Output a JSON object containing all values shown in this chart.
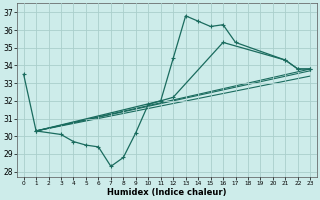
{
  "xlabel": "Humidex (Indice chaleur)",
  "xlim": [
    -0.5,
    23.5
  ],
  "ylim": [
    27.7,
    37.5
  ],
  "yticks": [
    28,
    29,
    30,
    31,
    32,
    33,
    34,
    35,
    36,
    37
  ],
  "xticks": [
    0,
    1,
    2,
    3,
    4,
    5,
    6,
    7,
    8,
    9,
    10,
    11,
    12,
    13,
    14,
    15,
    16,
    17,
    18,
    19,
    20,
    21,
    22,
    23
  ],
  "bg_color": "#cdecea",
  "grid_color": "#aacfcc",
  "line_color": "#1a6b5e",
  "s1_x": [
    0,
    1,
    11,
    12,
    13,
    14,
    15,
    16,
    17,
    21,
    22,
    23
  ],
  "s1_y": [
    33.5,
    30.3,
    32.0,
    34.4,
    36.8,
    36.5,
    36.2,
    36.3,
    35.3,
    34.3,
    33.8,
    33.8
  ],
  "s2_x": [
    1,
    3,
    4,
    5,
    6,
    7,
    8,
    9,
    10,
    12,
    16,
    21,
    22,
    23
  ],
  "s2_y": [
    30.3,
    30.1,
    29.7,
    29.5,
    29.4,
    28.3,
    28.8,
    30.2,
    31.8,
    32.2,
    35.3,
    34.3,
    33.8,
    33.8
  ],
  "trend_lines": [
    {
      "x": [
        1,
        23
      ],
      "y": [
        30.3,
        33.8
      ]
    },
    {
      "x": [
        1,
        23
      ],
      "y": [
        30.3,
        33.7
      ]
    },
    {
      "x": [
        1,
        23
      ],
      "y": [
        30.3,
        33.4
      ]
    }
  ]
}
